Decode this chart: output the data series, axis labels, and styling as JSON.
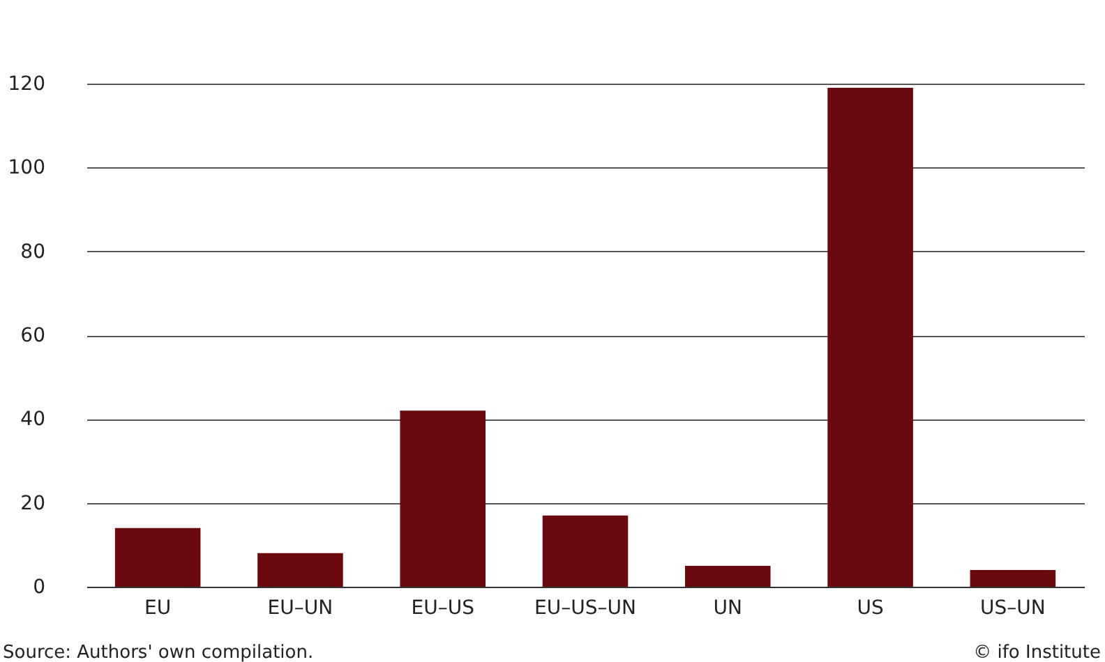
{
  "chart_data": {
    "type": "bar",
    "categories": [
      "EU",
      "EU–UN",
      "EU–US",
      "EU–US–UN",
      "UN",
      "US",
      "US–UN"
    ],
    "values": [
      14,
      8,
      42,
      17,
      5,
      119,
      4
    ],
    "color": "#6b0a0e",
    "ylim": [
      0,
      120
    ],
    "yticks": [
      0,
      20,
      40,
      60,
      80,
      100,
      120
    ],
    "grid": "y",
    "annotations": [
      "Source: Authors' own compilation.",
      "© ifo Institute"
    ]
  }
}
